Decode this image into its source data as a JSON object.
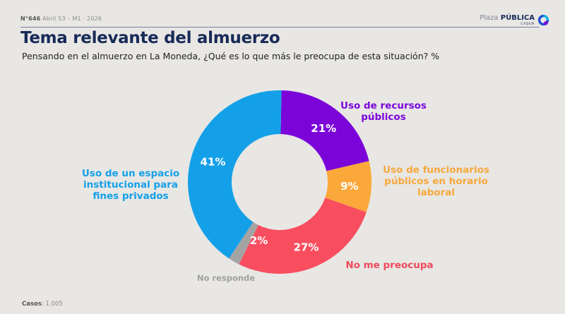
{
  "header": {
    "issue": "N°646",
    "period": "Abril S3 – M1 · 2026",
    "brand_light": "Plaza",
    "brand_bold": "PÚBLICA",
    "brand_sub": "CADEM"
  },
  "footer": {
    "cases_label": "Casos",
    "cases_value": ": 1.005"
  },
  "chart_data": {
    "type": "pie",
    "variant": "donut",
    "title": "Tema relevante del almuerzo",
    "subtitle": "Pensando en el almuerzo en La Moneda, ¿Qué es lo que más le preocupa de esta situación? %",
    "unit": "%",
    "slices": [
      {
        "label": "Uso de recursos públicos",
        "value": 21,
        "display": "21%",
        "color": "#7b05d9"
      },
      {
        "label": "Uso de funcionarios públicos en horario laboral",
        "value": 9,
        "display": "9%",
        "color": "#fba83a"
      },
      {
        "label": "No me preocupa",
        "value": 27,
        "display": "27%",
        "color": "#f84e5f"
      },
      {
        "label": "No responde",
        "value": 2,
        "display": "2%",
        "color": "#a3a3a3"
      },
      {
        "label": "Uso de un espacio institucional para fines privados",
        "value": 41,
        "display": "41%",
        "color": "#14a0e8"
      }
    ],
    "legend": "outside-labels"
  }
}
